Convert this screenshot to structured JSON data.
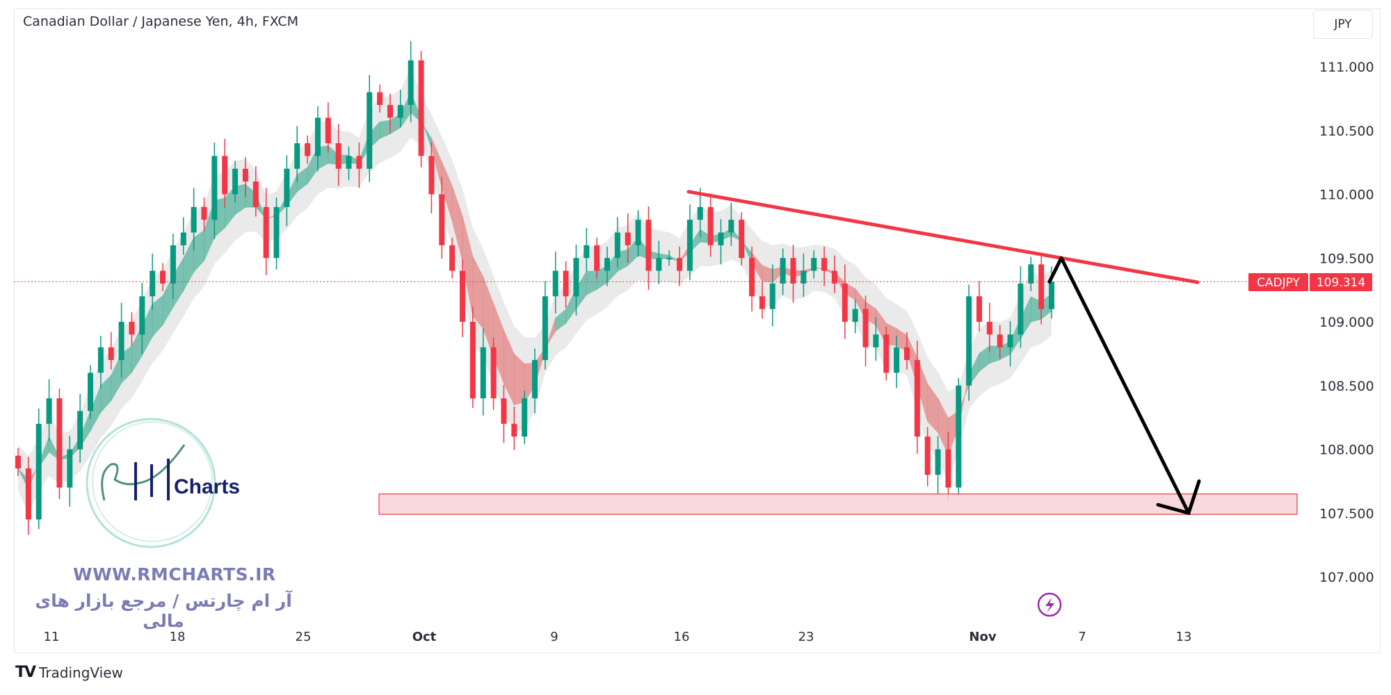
{
  "header": {
    "title": "Canadian Dollar / Japanese Yen, 4h, FXCM",
    "currency_button": "JPY"
  },
  "price_badge": {
    "symbol": "CADJPY",
    "price": "109.314",
    "color": "#f23645"
  },
  "watermark": {
    "logo_text": "RM Charts",
    "website": "WWW.RMCHARTS.IR",
    "persian_tagline": "آر ام چارتس / مرجع بازار های مالی",
    "color": "#7b7bb5"
  },
  "footer": {
    "brand": "TradingView",
    "logo": "TV"
  },
  "icons": {
    "lightning": "lightning-icon"
  },
  "colors": {
    "up": "#089981",
    "down": "#f23645",
    "trendline": "#f23645",
    "arrow": "#000000",
    "zone_fill": "#f8d2d6",
    "zone_border": "#f23645",
    "ribbon_up": "#5fb8a3",
    "ribbon_down": "#e68a8a",
    "band": "#d8d8d8"
  },
  "chart_data": {
    "type": "candlestick",
    "title": "Canadian Dollar / Japanese Yen, 4h, FXCM",
    "ylabel": "JPY",
    "ylim": [
      106.7,
      111.3
    ],
    "y_ticks": [
      "111.000",
      "110.500",
      "110.000",
      "109.500",
      "109.000",
      "108.500",
      "108.000",
      "107.500",
      "107.000"
    ],
    "x_ticks": [
      "11",
      "18",
      "25",
      "Oct",
      "9",
      "16",
      "23",
      "Nov",
      "7",
      "13"
    ],
    "grid": false,
    "last_price": 109.314,
    "closes": [
      107.85,
      107.45,
      108.2,
      108.4,
      107.7,
      108.0,
      108.3,
      108.6,
      108.8,
      108.7,
      109.0,
      108.9,
      109.2,
      109.4,
      109.3,
      109.6,
      109.7,
      109.9,
      109.8,
      110.3,
      110.0,
      110.2,
      110.1,
      109.9,
      109.5,
      109.9,
      110.2,
      110.4,
      110.3,
      110.6,
      110.4,
      110.2,
      110.3,
      110.2,
      110.8,
      110.7,
      110.6,
      110.7,
      111.05,
      110.3,
      110.0,
      109.6,
      109.4,
      109.0,
      108.4,
      108.8,
      108.4,
      108.2,
      108.1,
      108.4,
      108.7,
      109.2,
      109.4,
      109.2,
      109.5,
      109.6,
      109.4,
      109.5,
      109.7,
      109.6,
      109.8,
      109.4,
      109.5,
      109.5,
      109.4,
      109.8,
      109.9,
      109.6,
      109.7,
      109.8,
      109.5,
      109.2,
      109.1,
      109.3,
      109.5,
      109.3,
      109.4,
      109.5,
      109.4,
      109.3,
      109.0,
      109.1,
      108.8,
      108.9,
      108.6,
      108.8,
      108.7,
      108.1,
      107.8,
      108.0,
      107.7,
      108.5,
      109.2,
      109.0,
      108.9,
      108.8,
      108.9,
      109.3,
      109.45,
      109.1,
      109.314
    ],
    "annotations": {
      "resistance_trendline": {
        "from_price": 110.02,
        "to_price": 109.31
      },
      "support_zone": {
        "low": 107.49,
        "high": 107.65
      },
      "projection_arrow": {
        "from_price": 109.5,
        "to_price": 107.5
      }
    }
  }
}
